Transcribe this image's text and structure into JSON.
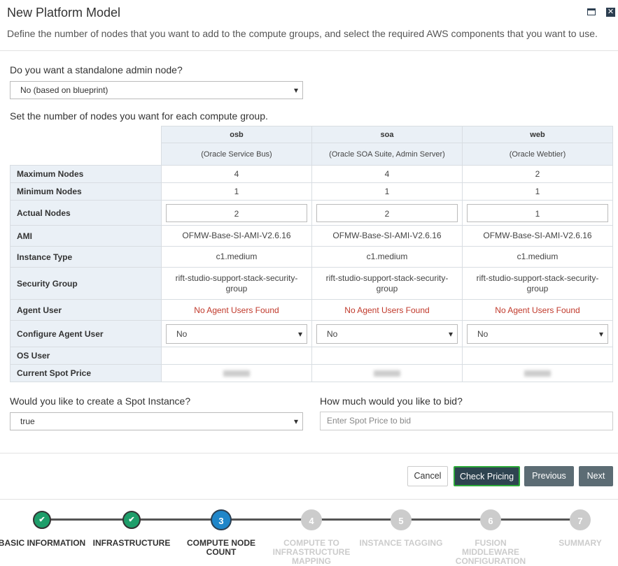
{
  "header": {
    "title": "New Platform Model",
    "description": "Define the number of nodes that you want to add to the compute groups, and select the required AWS components that you want to use."
  },
  "admin_node": {
    "label": "Do you want a standalone admin node?",
    "value": "No (based on blueprint)"
  },
  "groups_intro": "Set the number of nodes you want for each compute group.",
  "table": {
    "columns": [
      {
        "name": "osb",
        "description": "(Oracle Service Bus)"
      },
      {
        "name": "soa",
        "description": "(Oracle SOA Suite, Admin Server)"
      },
      {
        "name": "web",
        "description": "(Oracle Webtier)"
      }
    ],
    "rows": [
      {
        "label": "Maximum Nodes",
        "kind": "text",
        "cells": [
          "4",
          "4",
          "2"
        ]
      },
      {
        "label": "Minimum Nodes",
        "kind": "text",
        "cells": [
          "1",
          "1",
          "1"
        ]
      },
      {
        "label": "Actual Nodes",
        "kind": "input",
        "cells": [
          "2",
          "2",
          "1"
        ]
      },
      {
        "label": "AMI",
        "kind": "text",
        "cells": [
          "OFMW-Base-SI-AMI-V2.6.16",
          "OFMW-Base-SI-AMI-V2.6.16",
          "OFMW-Base-SI-AMI-V2.6.16"
        ]
      },
      {
        "label": "Instance Type",
        "kind": "text",
        "cells": [
          "c1.medium",
          "c1.medium",
          "c1.medium"
        ]
      },
      {
        "label": "Security Group",
        "kind": "text",
        "cells": [
          "rift-studio-support-stack-security-group",
          "rift-studio-support-stack-security-group",
          "rift-studio-support-stack-security-group"
        ]
      },
      {
        "label": "Agent User",
        "kind": "warning",
        "cells": [
          "No Agent Users Found",
          "No Agent Users Found",
          "No Agent Users Found"
        ]
      },
      {
        "label": "Configure Agent User",
        "kind": "select",
        "cells": [
          "No",
          "No",
          "No"
        ]
      },
      {
        "label": "OS User",
        "kind": "empty"
      },
      {
        "label": "Current Spot Price",
        "kind": "blurred"
      }
    ]
  },
  "spot": {
    "label": "Would you like to create a Spot Instance?",
    "value": "true"
  },
  "bid": {
    "label": "How much would you like to bid?",
    "placeholder": "Enter Spot Price to bid"
  },
  "buttons": [
    "Cancel",
    "Check Pricing",
    "Previous",
    "Next"
  ],
  "steps": [
    {
      "label": "BASIC INFORMATION",
      "state": "done"
    },
    {
      "label": "INFRASTRUCTURE",
      "state": "done"
    },
    {
      "number": "3",
      "label": "COMPUTE NODE COUNT",
      "state": "current"
    },
    {
      "number": "4",
      "label": "COMPUTE TO INFRASTRUCTURE MAPPING",
      "state": "todo"
    },
    {
      "number": "5",
      "label": "INSTANCE TAGGING",
      "state": "todo"
    },
    {
      "number": "6",
      "label": "FUSION MIDDLEWARE CONFIGURATION",
      "state": "todo"
    },
    {
      "number": "7",
      "label": "SUMMARY",
      "state": "todo"
    }
  ]
}
